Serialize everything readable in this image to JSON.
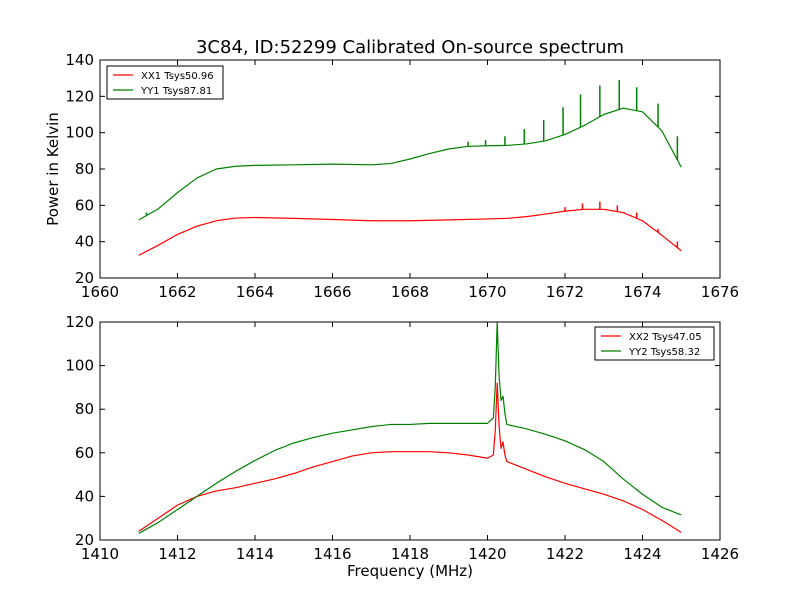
{
  "figure": {
    "title": "3C84, ID:52299 Calibrated On-source spectrum",
    "background": "#ffffff"
  },
  "colors": {
    "red": "#ff0000",
    "green": "#008000",
    "axis": "#000000"
  },
  "chart_data": [
    {
      "type": "line",
      "title": "3C84, ID:52299 Calibrated On-source spectrum",
      "xlabel": "",
      "ylabel": "Power in Kelvin",
      "xlim": [
        1660,
        1676
      ],
      "ylim": [
        20,
        140
      ],
      "xticks": [
        1660,
        1662,
        1664,
        1666,
        1668,
        1670,
        1672,
        1674,
        1676
      ],
      "yticks": [
        20,
        40,
        60,
        80,
        100,
        120,
        140
      ],
      "grid": false,
      "legend": "top-left",
      "series": [
        {
          "name": "XX1 Tsys50.96",
          "color": "#ff0000",
          "x": [
            1661.0,
            1661.5,
            1662.0,
            1662.5,
            1663.0,
            1663.5,
            1664.0,
            1665.0,
            1666.0,
            1667.0,
            1668.0,
            1669.0,
            1670.0,
            1670.5,
            1671.0,
            1671.5,
            1672.0,
            1672.5,
            1673.0,
            1673.5,
            1674.0,
            1674.5,
            1675.0
          ],
          "values": [
            32.5,
            38,
            44,
            48.5,
            51.5,
            53,
            53.3,
            52.8,
            52.2,
            51.5,
            51.5,
            52,
            52.5,
            52.8,
            53.8,
            55.2,
            56.8,
            57.8,
            57.8,
            56,
            51.5,
            43.5,
            35
          ],
          "spikes": [
            {
              "x": 1661.2,
              "value": 35
            },
            {
              "x": 1672.0,
              "value": 59
            },
            {
              "x": 1672.45,
              "value": 61
            },
            {
              "x": 1672.9,
              "value": 62
            },
            {
              "x": 1673.35,
              "value": 60
            },
            {
              "x": 1673.85,
              "value": 56
            },
            {
              "x": 1674.4,
              "value": 47
            },
            {
              "x": 1674.9,
              "value": 40
            }
          ]
        },
        {
          "name": "YY1 Tsys87.81",
          "color": "#008000",
          "x": [
            1661.0,
            1661.5,
            1662.0,
            1662.5,
            1663.0,
            1663.5,
            1664.0,
            1665.0,
            1666.0,
            1667.0,
            1667.5,
            1668.0,
            1668.5,
            1669.0,
            1669.5,
            1670.0,
            1670.5,
            1671.0,
            1671.5,
            1672.0,
            1672.5,
            1673.0,
            1673.5,
            1674.0,
            1674.5,
            1675.0
          ],
          "values": [
            52,
            58,
            67,
            75,
            80,
            81.5,
            82,
            82.3,
            82.7,
            82.3,
            83,
            85.5,
            88.5,
            91,
            92.5,
            92.8,
            93,
            93.8,
            95.5,
            99,
            104,
            110,
            113.5,
            111.5,
            101,
            81
          ],
          "spikes": [
            {
              "x": 1661.2,
              "value": 56
            },
            {
              "x": 1669.5,
              "value": 95
            },
            {
              "x": 1669.95,
              "value": 96
            },
            {
              "x": 1670.45,
              "value": 98
            },
            {
              "x": 1670.95,
              "value": 102
            },
            {
              "x": 1671.45,
              "value": 107
            },
            {
              "x": 1671.95,
              "value": 114
            },
            {
              "x": 1672.4,
              "value": 121
            },
            {
              "x": 1672.9,
              "value": 126
            },
            {
              "x": 1673.4,
              "value": 129
            },
            {
              "x": 1673.85,
              "value": 125
            },
            {
              "x": 1674.4,
              "value": 116
            },
            {
              "x": 1674.9,
              "value": 98
            }
          ]
        }
      ]
    },
    {
      "type": "line",
      "title": "",
      "xlabel": "Frequency (MHz)",
      "ylabel": "",
      "xlim": [
        1410,
        1426
      ],
      "ylim": [
        20,
        120
      ],
      "xticks": [
        1410,
        1412,
        1414,
        1416,
        1418,
        1420,
        1422,
        1424,
        1426
      ],
      "yticks": [
        20,
        40,
        60,
        80,
        100,
        120
      ],
      "grid": false,
      "legend": "top-right",
      "series": [
        {
          "name": "XX2 Tsys47.05",
          "color": "#ff0000",
          "x": [
            1411.0,
            1411.5,
            1412.0,
            1412.5,
            1413.0,
            1413.5,
            1414.0,
            1414.5,
            1415.0,
            1415.5,
            1416.0,
            1416.5,
            1417.0,
            1417.5,
            1418.0,
            1418.5,
            1419.0,
            1419.5,
            1420.0,
            1420.15,
            1420.2,
            1420.25,
            1420.3,
            1420.35,
            1420.4,
            1420.45,
            1420.5,
            1421.0,
            1421.5,
            1422.0,
            1422.5,
            1423.0,
            1423.5,
            1424.0,
            1424.5,
            1425.0
          ],
          "values": [
            24,
            30,
            36,
            40,
            42.5,
            44,
            46,
            48,
            50.5,
            53.5,
            56,
            58.5,
            60,
            60.5,
            60.5,
            60.5,
            60,
            59,
            57.5,
            59,
            70,
            92,
            72,
            62,
            65,
            59,
            56,
            52.5,
            49,
            46,
            43.5,
            41,
            38,
            34,
            29,
            23.5
          ]
        },
        {
          "name": "YY2 Tsys58.32",
          "color": "#008000",
          "x": [
            1411.0,
            1411.5,
            1412.0,
            1412.5,
            1413.0,
            1413.5,
            1414.0,
            1414.5,
            1415.0,
            1415.5,
            1416.0,
            1416.5,
            1417.0,
            1417.5,
            1418.0,
            1418.5,
            1419.0,
            1419.5,
            1420.0,
            1420.15,
            1420.2,
            1420.25,
            1420.3,
            1420.35,
            1420.4,
            1420.45,
            1420.5,
            1421.0,
            1421.5,
            1422.0,
            1422.5,
            1423.0,
            1423.5,
            1424.0,
            1424.5,
            1425.0
          ],
          "values": [
            23,
            28,
            34,
            40,
            46,
            51.5,
            56.5,
            61,
            64.5,
            67,
            69,
            70.5,
            72,
            73,
            73,
            73.5,
            73.5,
            73.5,
            73.5,
            76,
            90,
            120,
            95,
            84,
            86,
            78,
            73,
            71,
            68.5,
            65.5,
            61.5,
            56,
            48,
            41,
            35,
            31.5
          ]
        }
      ]
    }
  ]
}
